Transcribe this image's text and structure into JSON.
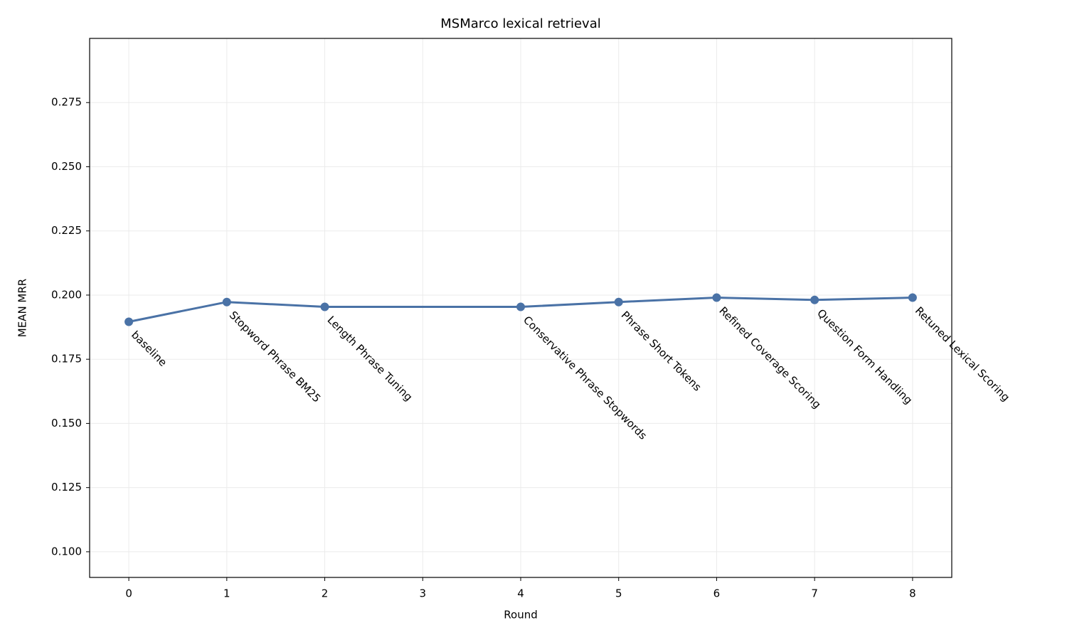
{
  "chart_data": {
    "type": "line",
    "title": "MSMarco lexical retrieval",
    "x_label": "Round",
    "y_label": "MEAN MRR",
    "x": [
      0,
      1,
      2,
      4,
      5,
      6,
      7,
      8
    ],
    "series": [
      {
        "name": "MEAN MRR",
        "color": "#4a72a6",
        "values": [
          0.1896,
          0.1973,
          0.1954,
          0.1954,
          0.1973,
          0.199,
          0.1981,
          0.199
        ]
      }
    ],
    "annotations": [
      "baseline",
      "Stopword Phrase BM25",
      "Length Phrase Tuning",
      "Conservative Phrase Stopwords",
      "Phrase Short Tokens",
      "Refined Coverage Scoring",
      "Question Form Handling",
      "Retuned Lexical Scoring"
    ],
    "xlim": [
      -0.4,
      8.4
    ],
    "xticks": [
      0,
      1,
      2,
      3,
      4,
      5,
      6,
      7,
      8
    ],
    "ylim": [
      0.09,
      0.3
    ],
    "yticks": [
      {
        "value": 0.1,
        "label": "0.100"
      },
      {
        "value": 0.125,
        "label": "0.125"
      },
      {
        "value": 0.15,
        "label": "0.150"
      },
      {
        "value": 0.175,
        "label": "0.175"
      },
      {
        "value": 0.2,
        "label": "0.200"
      },
      {
        "value": 0.225,
        "label": "0.225"
      },
      {
        "value": 0.25,
        "label": "0.250"
      },
      {
        "value": 0.275,
        "label": "0.275"
      }
    ],
    "grid": true
  }
}
